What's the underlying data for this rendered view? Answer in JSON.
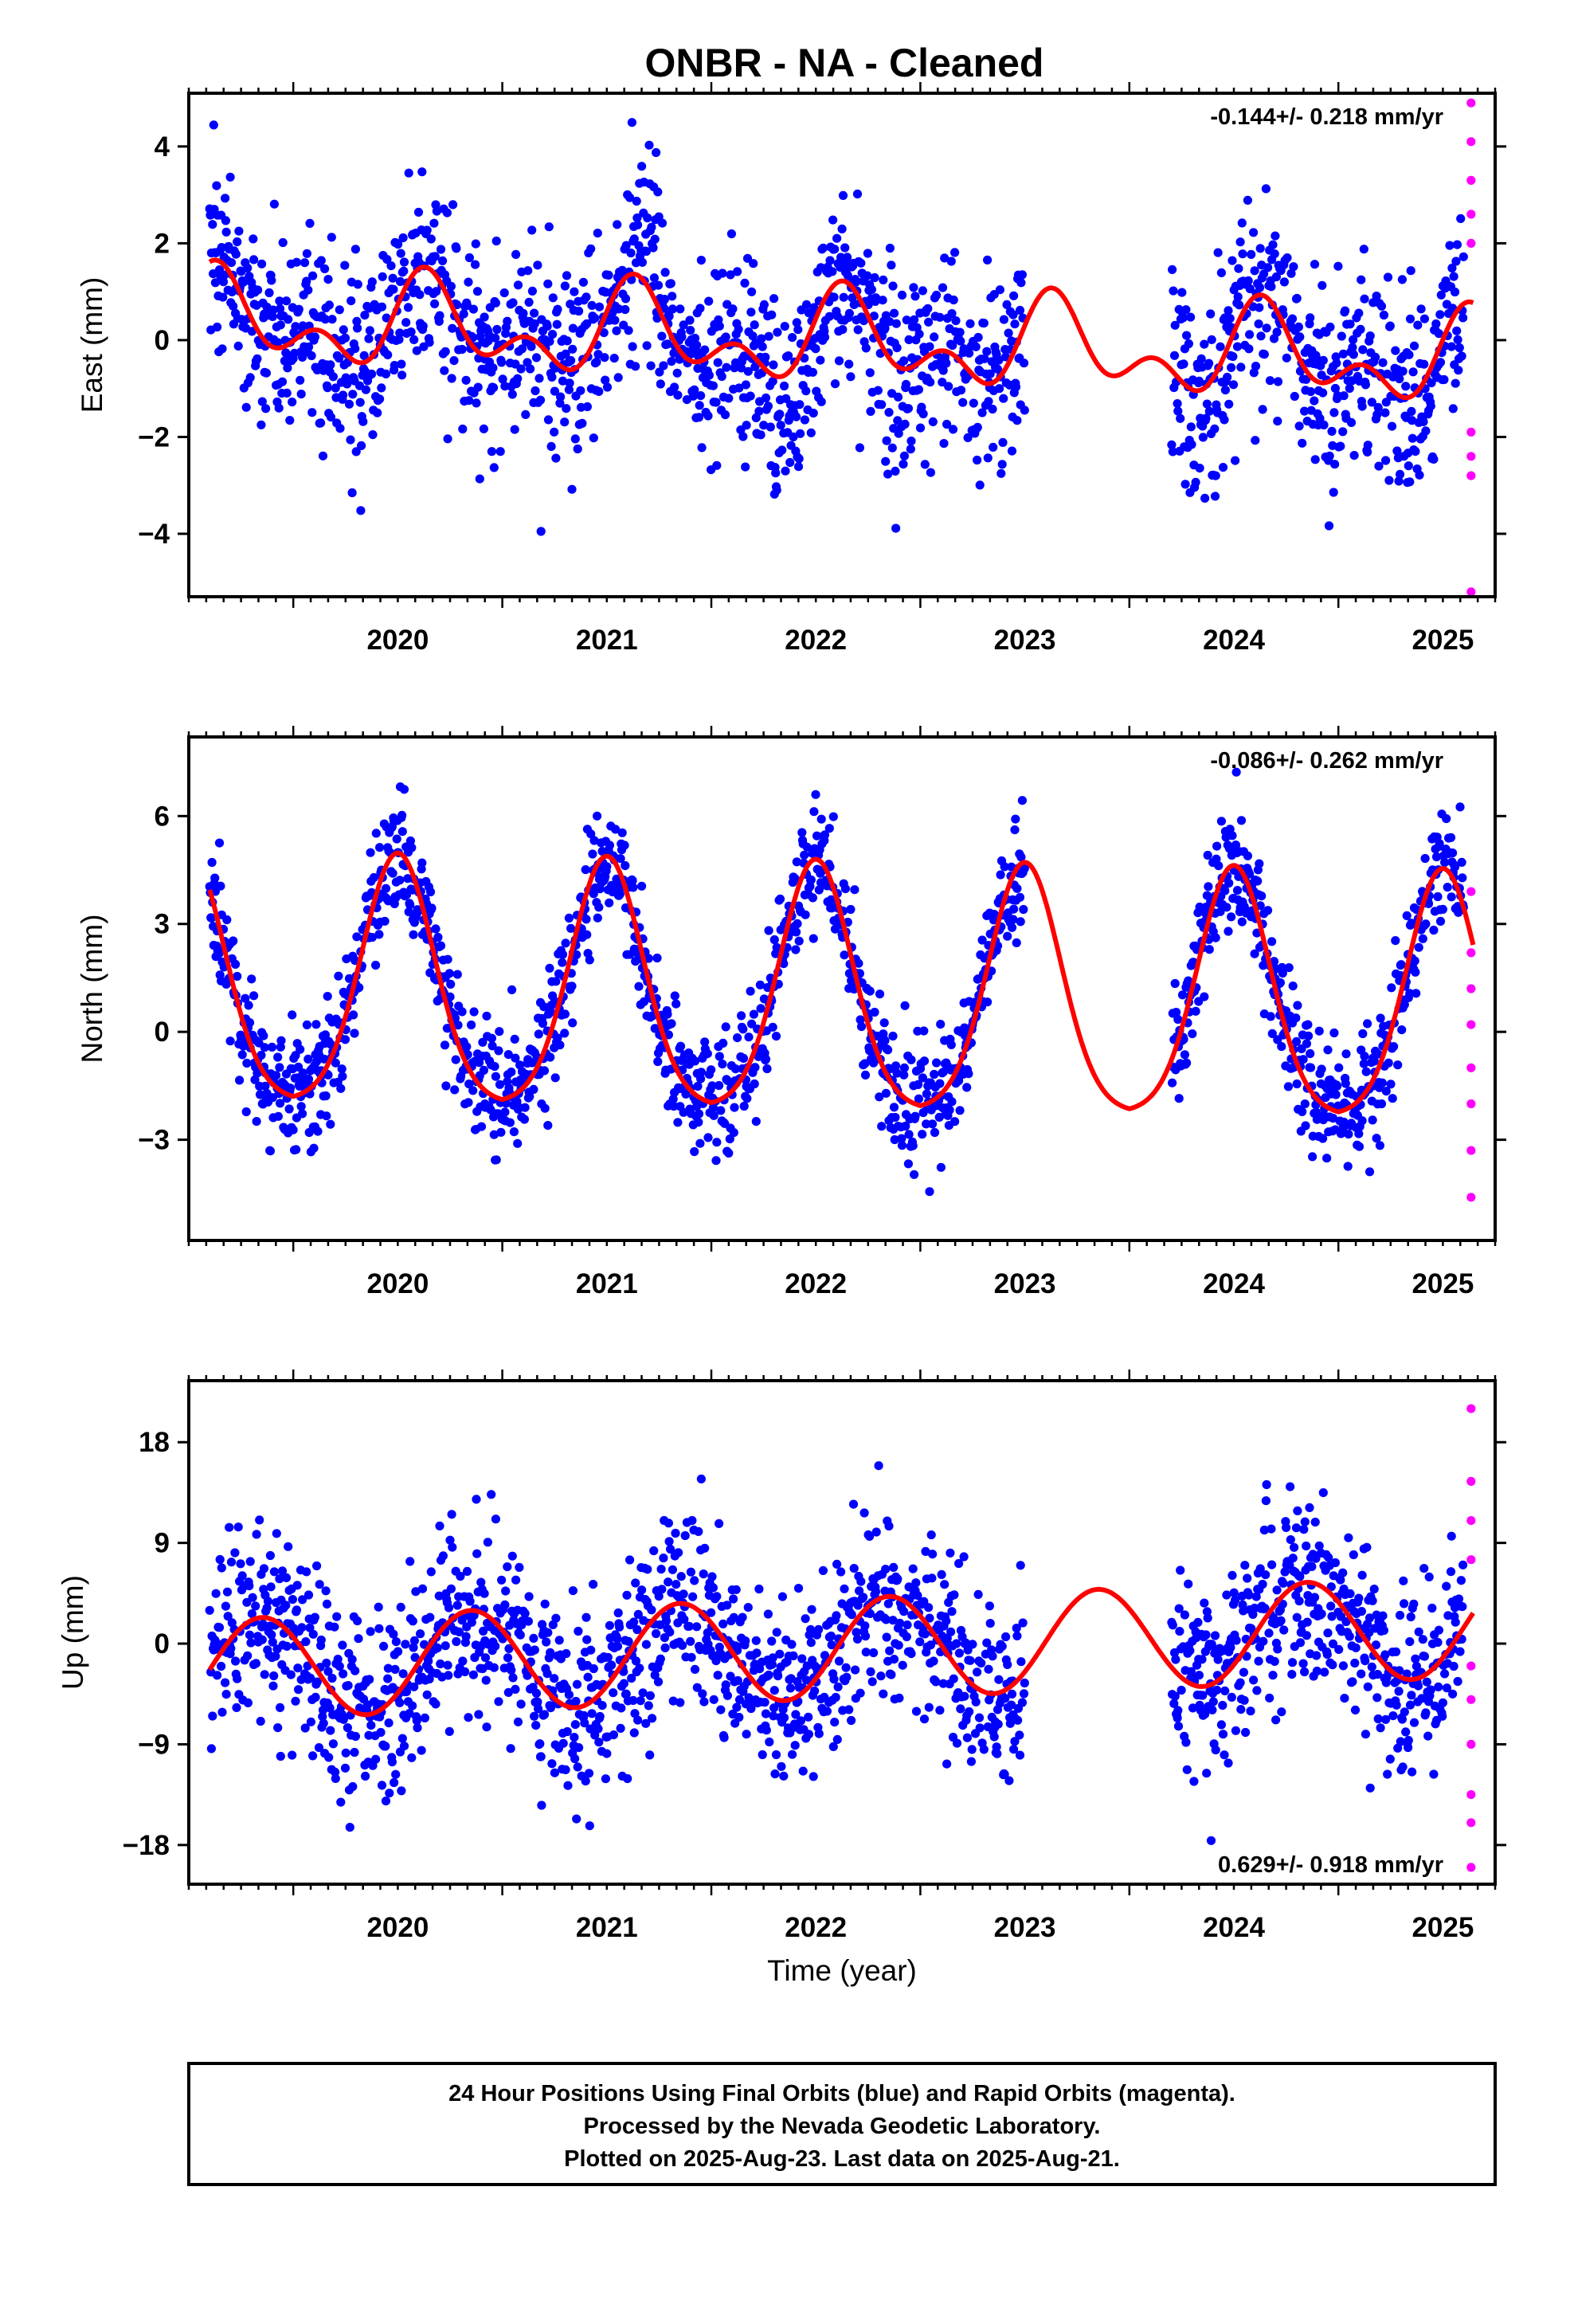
{
  "chart_data": {
    "type": "scatter",
    "title": "ONBR  - NA - Cleaned",
    "xlabel": "Time (year)",
    "x_ticks": [
      "2020",
      "2021",
      "2022",
      "2023",
      "2024",
      "2025"
    ],
    "xlim": [
      2019.5,
      2025.75
    ],
    "data_gap": [
      2023.5,
      2024.2
    ],
    "colors": {
      "final": "#0000ff",
      "rapid": "#ff00ff",
      "model": "#ff0000"
    },
    "legend": [
      "24 Hour Positions Using Final Orbits (blue) and Rapid Orbits (magenta).",
      "Processed by the Nevada Geodetic Laboratory.",
      "Plotted on 2025-Aug-23. Last data on 2025-Aug-21."
    ],
    "panels": [
      {
        "component": "East",
        "ylabel": "East (mm)",
        "ylim": [
          -5.3,
          5.1
        ],
        "yticks": [
          4,
          2,
          0,
          -2,
          -4
        ],
        "yticklabels": [
          "4",
          "2",
          "0",
          "−2",
          "−4"
        ],
        "rate": "-0.144+/- 0.218 mm/yr",
        "rate_position": "top-right",
        "model": {
          "offset": 0.0,
          "trend": -0.144,
          "annual_amplitude": 0.7,
          "annual_peak": 0.65,
          "semiannual_amplitude": 0.55,
          "semiannual_peak": 0.12
        },
        "noise_sd": 1.0,
        "outlier_bumps": [
          {
            "start": 2021.6,
            "end": 2021.75,
            "shift": 1.5
          },
          {
            "start": 2022.3,
            "end": 2022.5,
            "shift": -1.5
          },
          {
            "start": 2024.3,
            "end": 2024.45,
            "shift": -1.0
          }
        ],
        "rapid_orbit_values": [
          4.9,
          4.1,
          3.3,
          2.6,
          2.0,
          -1.9,
          -2.4,
          -2.8,
          -5.2
        ]
      },
      {
        "component": "North",
        "ylabel": "North (mm)",
        "ylim": [
          -5.8,
          8.2
        ],
        "yticks": [
          6,
          3,
          0,
          -3
        ],
        "yticklabels": [
          "6",
          "3",
          "0",
          "−3"
        ],
        "rate": "-0.086+/- 0.262 mm/yr",
        "rate_position": "top-right",
        "model": {
          "baseline": -2.1,
          "peak_height": 6.9,
          "peak_center": 0.5,
          "peak_width": 0.24,
          "trend": -0.086
        },
        "noise_sd": 0.85,
        "rapid_orbit_values": [
          3.9,
          2.2,
          1.2,
          0.2,
          -1.0,
          -2.0,
          -3.3,
          -4.6
        ]
      },
      {
        "component": "Up",
        "ylabel": "Up (mm)",
        "ylim": [
          -21.5,
          23.5
        ],
        "yticks": [
          18,
          9,
          0,
          -9,
          -18
        ],
        "yticklabels": [
          "18",
          "9",
          "0",
          "−9",
          "−18"
        ],
        "rate": "0.629+/- 0.918 mm/yr",
        "rate_position": "bottom-right",
        "model": {
          "offset": -0.5,
          "trend": 0.629,
          "annual_amplitude": 4.5,
          "annual_peak": 0.85,
          "semiannual_amplitude": 0.0,
          "semiannual_peak": 0.0
        },
        "noise_sd": 4.2,
        "rapid_orbit_values": [
          21.0,
          14.5,
          11.0,
          7.5,
          -2.0,
          -5.0,
          -9.0,
          -13.5,
          -16.0,
          -20.0
        ]
      }
    ]
  }
}
